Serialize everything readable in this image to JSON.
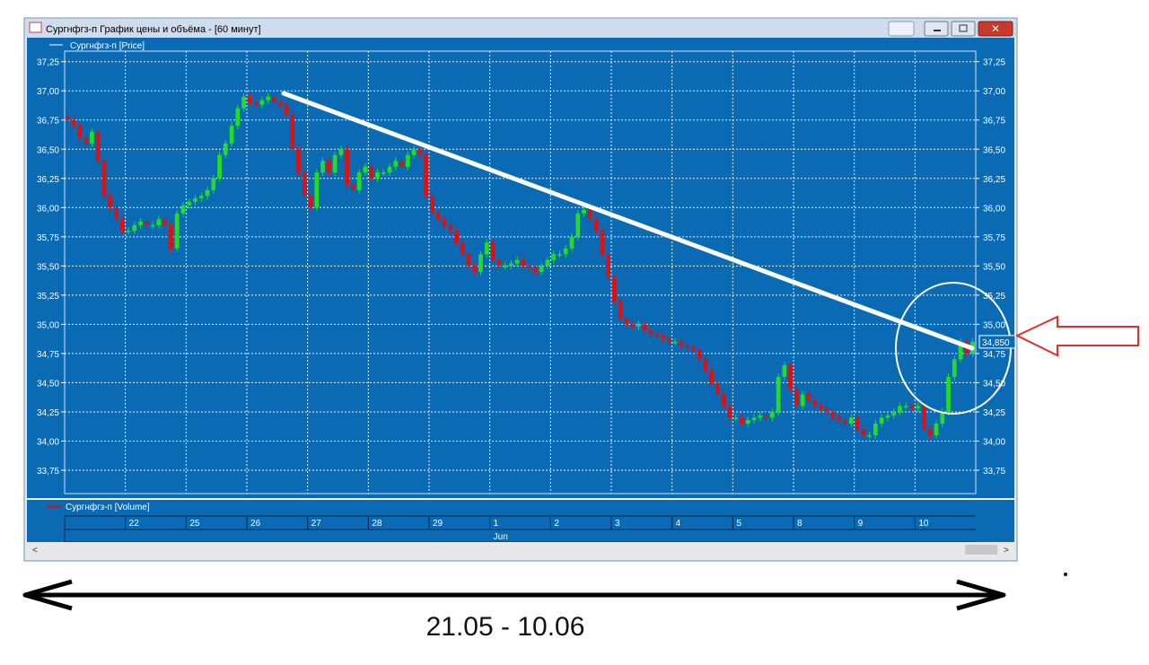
{
  "window_title": "Сургнфгз-п График цены и объёма - [60 минут]",
  "price_legend": "Сургнфгз-п [Price]",
  "volume_legend": "Сургнфгз-п [Volume]",
  "day_labels": [
    "22",
    "25",
    "26",
    "27",
    "28",
    "29",
    "1",
    "2",
    "3",
    "4",
    "5",
    "8",
    "9",
    "10"
  ],
  "month_label": "Jun",
  "period_caption": "21.05 - 10.06",
  "chart_data": {
    "type": "candlestick",
    "up_color": "#22dd22",
    "down_color": "#dd1111",
    "grid": true,
    "ylim": [
      33.55,
      37.34
    ],
    "yticks": [
      {
        "value": 33.75,
        "label": "33,75"
      },
      {
        "value": 34,
        "label": "34,00"
      },
      {
        "value": 34.25,
        "label": "34,25"
      },
      {
        "value": 34.5,
        "label": "34,50"
      },
      {
        "value": 34.75,
        "label": "34,75"
      },
      {
        "value": 35,
        "label": "35,00"
      },
      {
        "value": 35.25,
        "label": "35,25"
      },
      {
        "value": 35.5,
        "label": "35,50"
      },
      {
        "value": 35.75,
        "label": "35,75"
      },
      {
        "value": 36,
        "label": "36,00"
      },
      {
        "value": 36.25,
        "label": "36,25"
      },
      {
        "value": 36.5,
        "label": "36,50"
      },
      {
        "value": 36.75,
        "label": "36,75"
      },
      {
        "value": 37,
        "label": "37,00"
      },
      {
        "value": 37.25,
        "label": "37,25"
      }
    ],
    "last_price": {
      "value": 34.85,
      "label": "34,850"
    },
    "open": [
      36.78,
      36.75,
      36.7,
      36.6,
      36.55,
      36.65,
      36.4,
      36.1,
      36.0,
      35.9,
      35.8,
      35.8,
      35.85,
      35.88,
      35.85,
      35.85,
      35.9,
      35.85,
      35.65,
      35.95,
      36.02,
      36.05,
      36.08,
      36.1,
      36.15,
      36.25,
      36.45,
      36.55,
      36.7,
      36.85,
      36.95,
      36.9,
      36.88,
      36.92,
      36.95,
      36.9,
      36.88,
      36.8,
      36.5,
      36.3,
      36.1,
      36.0,
      36.3,
      36.4,
      36.3,
      36.45,
      36.5,
      36.2,
      36.15,
      36.3,
      36.35,
      36.25,
      36.3,
      36.3,
      36.35,
      36.4,
      36.35,
      36.45,
      36.5,
      36.45,
      36.1,
      35.95,
      35.9,
      35.85,
      35.8,
      35.7,
      35.6,
      35.5,
      35.45,
      35.6,
      35.7,
      35.55,
      35.5,
      35.5,
      35.52,
      35.55,
      35.5,
      35.48,
      35.45,
      35.5,
      35.55,
      35.6,
      35.6,
      35.65,
      35.75,
      35.95,
      35.98,
      35.9,
      35.8,
      35.6,
      35.4,
      35.2,
      35.05,
      35.0,
      34.98,
      35.0,
      34.95,
      34.92,
      34.9,
      34.88,
      34.85,
      34.85,
      34.82,
      34.8,
      34.78,
      34.7,
      34.6,
      34.5,
      34.4,
      34.3,
      34.2,
      34.2,
      34.15,
      34.18,
      34.2,
      34.22,
      34.2,
      34.25,
      34.55,
      34.65,
      34.45,
      34.3,
      34.4,
      34.35,
      34.3,
      34.28,
      34.25,
      34.2,
      34.18,
      34.15,
      34.2,
      34.1,
      34.05,
      34.05,
      34.15,
      34.2,
      34.22,
      34.25,
      34.3,
      34.3,
      34.28,
      34.3,
      34.1,
      34.05,
      34.15,
      34.25,
      34.55,
      34.7,
      34.85,
      34.75
    ],
    "high": [
      36.81,
      36.78,
      36.73,
      36.63,
      36.68,
      36.68,
      36.43,
      36.13,
      36.03,
      35.93,
      35.83,
      35.88,
      35.91,
      35.91,
      35.88,
      35.93,
      35.93,
      35.88,
      35.98,
      36.05,
      36.08,
      36.11,
      36.13,
      36.18,
      36.28,
      36.48,
      36.58,
      36.73,
      36.88,
      36.98,
      36.98,
      36.93,
      36.95,
      36.98,
      36.98,
      36.93,
      36.91,
      36.83,
      36.53,
      36.33,
      36.13,
      36.33,
      36.43,
      36.43,
      36.48,
      36.53,
      36.53,
      36.23,
      36.33,
      36.38,
      36.38,
      36.33,
      36.33,
      36.38,
      36.43,
      36.43,
      36.48,
      36.53,
      36.53,
      36.48,
      36.13,
      35.98,
      35.93,
      35.88,
      35.83,
      35.73,
      35.63,
      35.53,
      35.63,
      35.73,
      35.73,
      35.58,
      35.53,
      35.55,
      35.58,
      35.58,
      35.53,
      35.51,
      35.53,
      35.58,
      35.63,
      35.63,
      35.68,
      35.78,
      35.98,
      36.01,
      36.01,
      35.93,
      35.83,
      35.63,
      35.43,
      35.23,
      35.08,
      35.03,
      35.03,
      35.03,
      34.98,
      34.95,
      34.93,
      34.91,
      34.88,
      34.88,
      34.85,
      34.83,
      34.81,
      34.73,
      34.63,
      34.53,
      34.43,
      34.33,
      34.23,
      34.23,
      34.21,
      34.23,
      34.25,
      34.25,
      34.28,
      34.58,
      34.68,
      34.68,
      34.48,
      34.43,
      34.43,
      34.38,
      34.33,
      34.31,
      34.28,
      34.23,
      34.21,
      34.23,
      34.23,
      34.13,
      34.08,
      34.18,
      34.23,
      34.25,
      34.28,
      34.33,
      34.33,
      34.33,
      34.33,
      34.33,
      34.13,
      34.18,
      34.28,
      34.58,
      34.73,
      34.88,
      34.88,
      34.88
    ],
    "low": [
      36.72,
      36.67,
      36.57,
      36.52,
      36.52,
      36.37,
      36.07,
      35.97,
      35.87,
      35.77,
      35.77,
      35.77,
      35.82,
      35.82,
      35.82,
      35.82,
      35.82,
      35.62,
      35.62,
      35.92,
      35.99,
      36.02,
      36.05,
      36.07,
      36.12,
      36.22,
      36.42,
      36.52,
      36.67,
      36.82,
      36.87,
      36.85,
      36.85,
      36.89,
      36.87,
      36.85,
      36.77,
      36.47,
      36.27,
      36.07,
      35.97,
      35.97,
      36.27,
      36.27,
      36.27,
      36.42,
      36.17,
      36.12,
      36.12,
      36.27,
      36.22,
      36.22,
      36.27,
      36.27,
      36.32,
      36.32,
      36.32,
      36.42,
      36.42,
      36.07,
      35.92,
      35.87,
      35.82,
      35.77,
      35.67,
      35.57,
      35.47,
      35.42,
      35.42,
      35.57,
      35.52,
      35.47,
      35.47,
      35.47,
      35.49,
      35.47,
      35.45,
      35.42,
      35.42,
      35.47,
      35.52,
      35.57,
      35.57,
      35.62,
      35.72,
      35.92,
      35.87,
      35.77,
      35.57,
      35.37,
      35.17,
      35.02,
      34.97,
      34.95,
      34.95,
      34.92,
      34.89,
      34.87,
      34.85,
      34.82,
      34.82,
      34.79,
      34.77,
      34.75,
      34.67,
      34.57,
      34.47,
      34.37,
      34.27,
      34.17,
      34.17,
      34.12,
      34.12,
      34.15,
      34.17,
      34.17,
      34.17,
      34.22,
      34.52,
      34.42,
      34.27,
      34.27,
      34.32,
      34.27,
      34.25,
      34.22,
      34.17,
      34.15,
      34.12,
      34.12,
      34.07,
      34.02,
      34.02,
      34.02,
      34.12,
      34.17,
      34.19,
      34.22,
      34.27,
      34.25,
      34.25,
      34.07,
      34.02,
      34.02,
      34.12,
      34.22,
      34.52,
      34.67,
      34.72,
      34.72
    ],
    "close": [
      36.75,
      36.7,
      36.6,
      36.55,
      36.65,
      36.4,
      36.1,
      36.0,
      35.9,
      35.8,
      35.8,
      35.85,
      35.88,
      35.85,
      35.85,
      35.9,
      35.85,
      35.65,
      35.95,
      36.02,
      36.05,
      36.08,
      36.1,
      36.15,
      36.25,
      36.45,
      36.55,
      36.7,
      36.85,
      36.95,
      36.9,
      36.88,
      36.92,
      36.95,
      36.9,
      36.88,
      36.8,
      36.5,
      36.3,
      36.1,
      36.0,
      36.3,
      36.4,
      36.3,
      36.45,
      36.5,
      36.2,
      36.15,
      36.3,
      36.35,
      36.25,
      36.3,
      36.3,
      36.35,
      36.4,
      36.35,
      36.45,
      36.5,
      36.45,
      36.1,
      35.95,
      35.9,
      35.85,
      35.8,
      35.7,
      35.6,
      35.5,
      35.45,
      35.6,
      35.7,
      35.55,
      35.5,
      35.5,
      35.52,
      35.55,
      35.5,
      35.48,
      35.45,
      35.5,
      35.55,
      35.6,
      35.6,
      35.65,
      35.75,
      35.95,
      35.98,
      35.9,
      35.8,
      35.6,
      35.4,
      35.2,
      35.05,
      35.0,
      34.98,
      35.0,
      34.95,
      34.92,
      34.9,
      34.88,
      34.85,
      34.85,
      34.82,
      34.8,
      34.78,
      34.7,
      34.6,
      34.5,
      34.4,
      34.3,
      34.2,
      34.2,
      34.15,
      34.18,
      34.2,
      34.22,
      34.2,
      34.25,
      34.55,
      34.65,
      34.45,
      34.3,
      34.4,
      34.35,
      34.3,
      34.28,
      34.25,
      34.2,
      34.18,
      34.15,
      34.2,
      34.1,
      34.05,
      34.05,
      34.15,
      34.2,
      34.22,
      34.25,
      34.3,
      34.3,
      34.28,
      34.3,
      34.1,
      34.05,
      34.15,
      34.25,
      34.55,
      34.7,
      34.85,
      34.75,
      34.85
    ]
  }
}
